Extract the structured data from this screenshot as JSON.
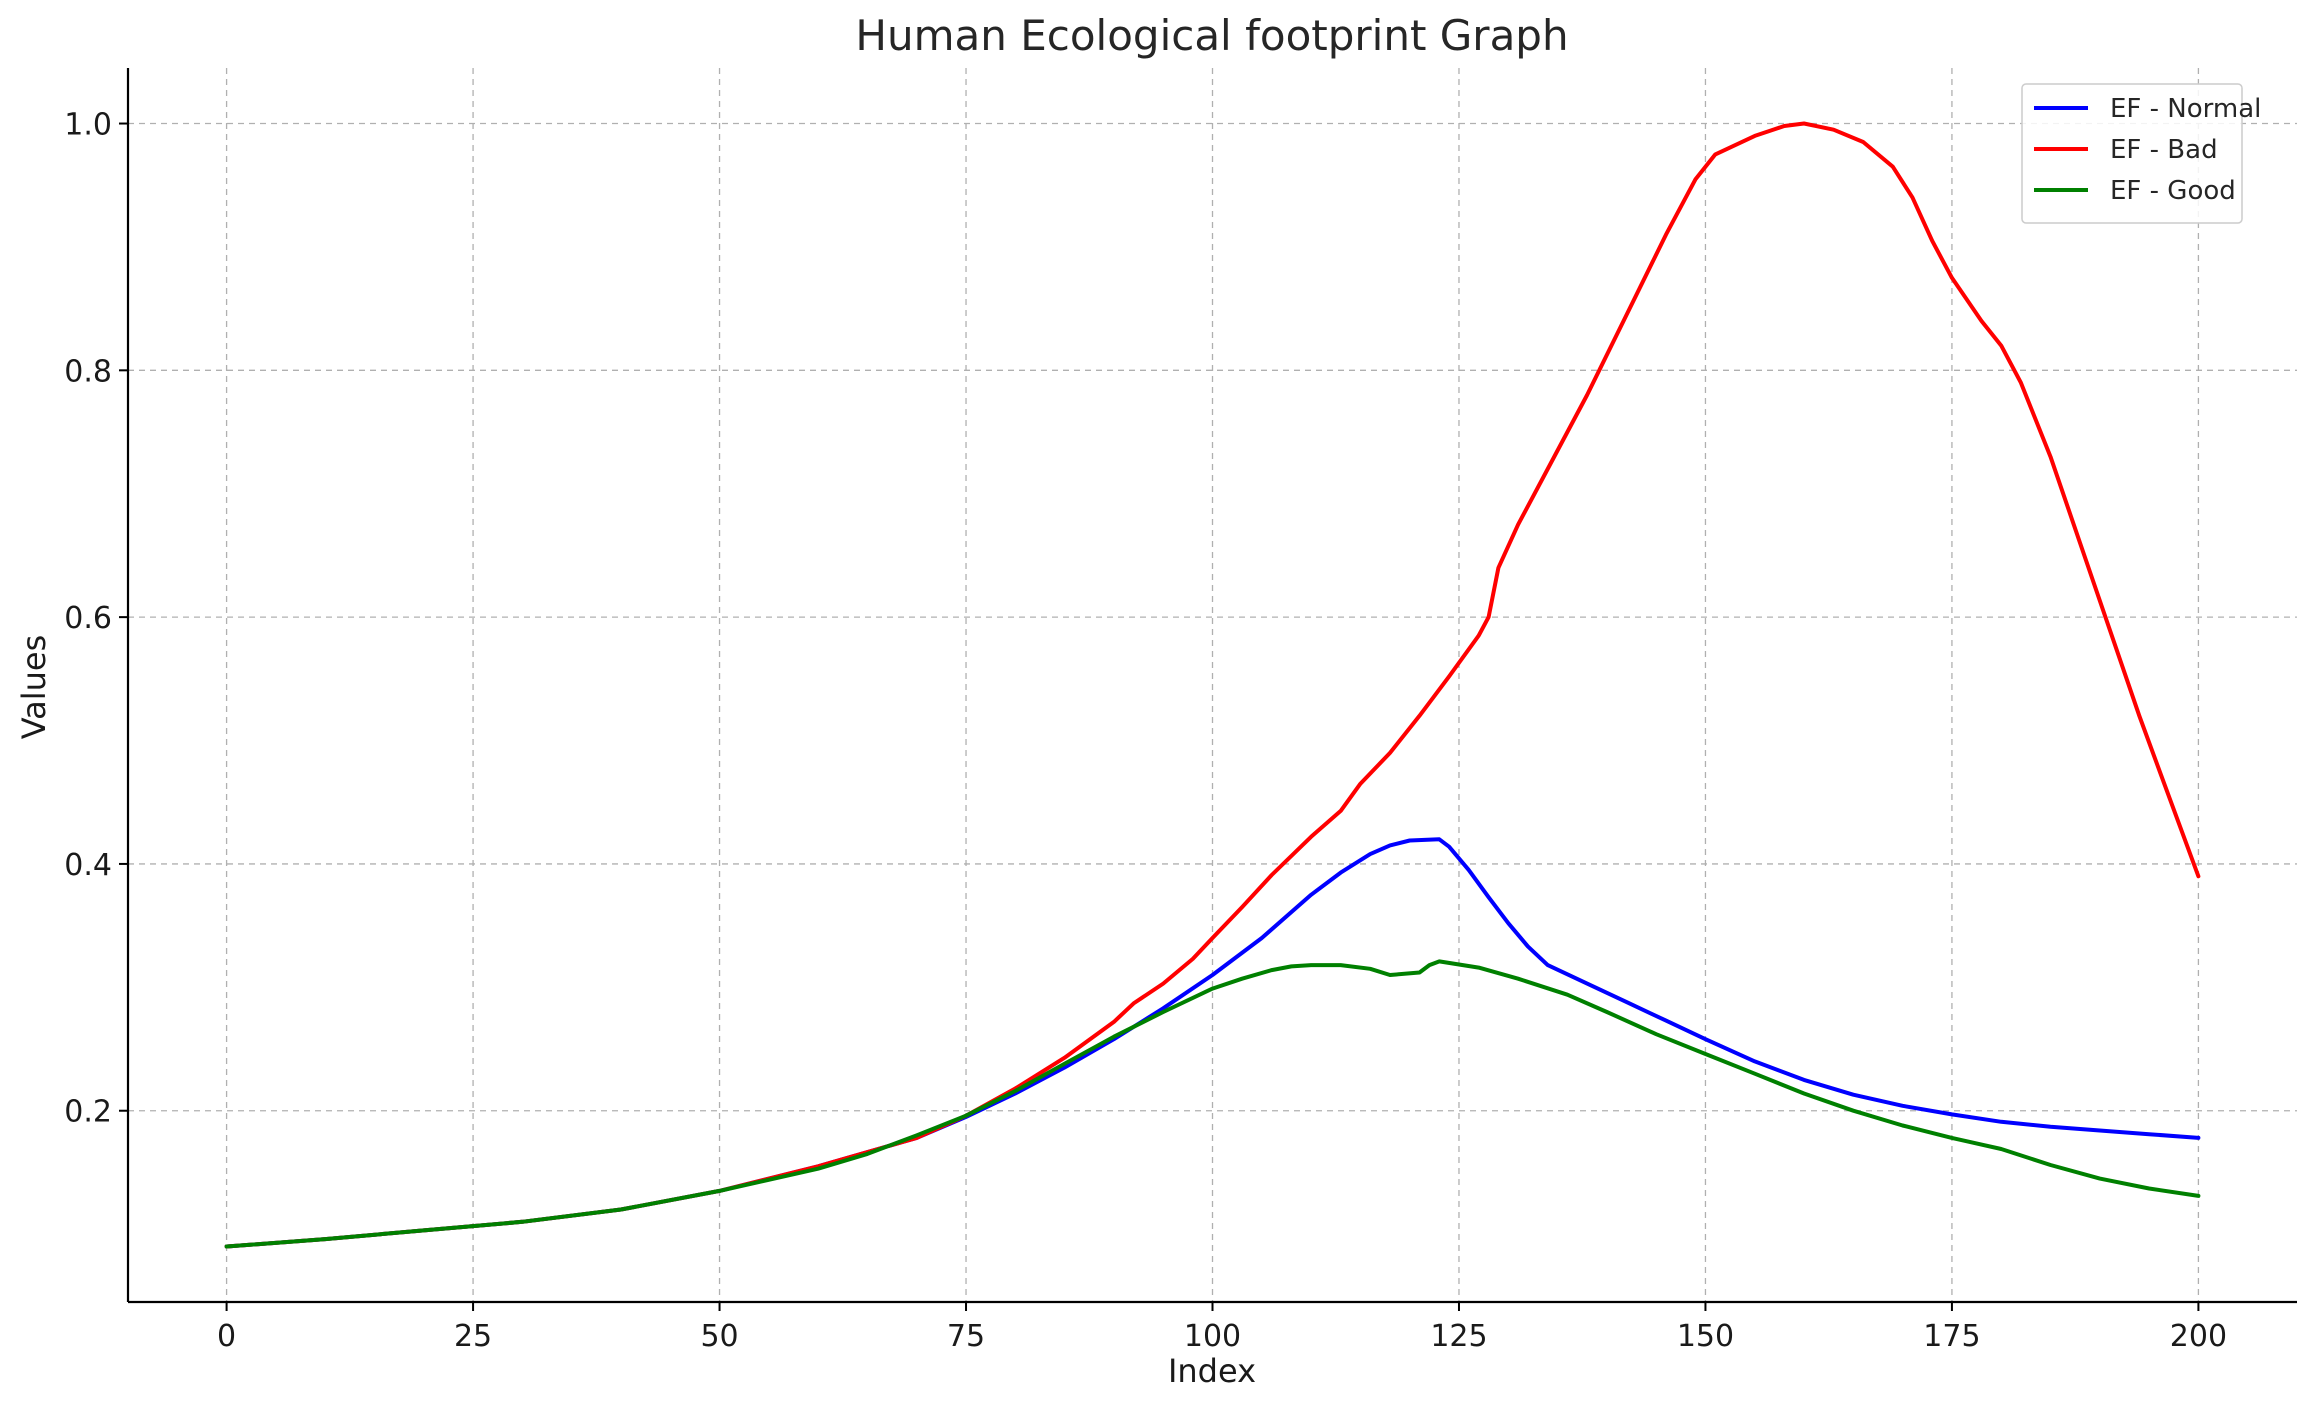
{
  "chart_data": {
    "type": "line",
    "title": "Human Ecological footprint Graph",
    "xlabel": "Index",
    "ylabel": "Values",
    "xlim": [
      -10,
      210
    ],
    "ylim": [
      0.045,
      1.045
    ],
    "xticks": [
      0,
      25,
      50,
      75,
      100,
      125,
      150,
      175,
      200
    ],
    "xtick_labels": [
      "0",
      "25",
      "50",
      "75",
      "100",
      "125",
      "150",
      "175",
      "200"
    ],
    "yticks": [
      0.2,
      0.4,
      0.6,
      0.8,
      1.0
    ],
    "ytick_labels": [
      "0.2",
      "0.4",
      "0.6",
      "0.8",
      "1.0"
    ],
    "grid": true,
    "legend": "top-right",
    "series": [
      {
        "name": "EF - Normal",
        "color": "#0000ff",
        "points": [
          [
            0,
            0.09
          ],
          [
            10,
            0.096
          ],
          [
            20,
            0.103
          ],
          [
            30,
            0.11
          ],
          [
            40,
            0.12
          ],
          [
            50,
            0.135
          ],
          [
            60,
            0.155
          ],
          [
            70,
            0.178
          ],
          [
            75,
            0.195
          ],
          [
            80,
            0.214
          ],
          [
            85,
            0.235
          ],
          [
            90,
            0.258
          ],
          [
            95,
            0.283
          ],
          [
            100,
            0.31
          ],
          [
            105,
            0.34
          ],
          [
            110,
            0.375
          ],
          [
            113,
            0.393
          ],
          [
            116,
            0.408
          ],
          [
            118,
            0.415
          ],
          [
            120,
            0.419
          ],
          [
            123,
            0.42
          ],
          [
            124,
            0.414
          ],
          [
            126,
            0.395
          ],
          [
            128,
            0.373
          ],
          [
            130,
            0.352
          ],
          [
            132,
            0.333
          ],
          [
            134,
            0.318
          ],
          [
            138,
            0.303
          ],
          [
            142,
            0.288
          ],
          [
            146,
            0.273
          ],
          [
            150,
            0.258
          ],
          [
            155,
            0.24
          ],
          [
            160,
            0.225
          ],
          [
            165,
            0.213
          ],
          [
            170,
            0.204
          ],
          [
            175,
            0.197
          ],
          [
            180,
            0.191
          ],
          [
            185,
            0.187
          ],
          [
            190,
            0.184
          ],
          [
            195,
            0.181
          ],
          [
            200,
            0.178
          ]
        ]
      },
      {
        "name": "EF - Bad",
        "color": "#ff0000",
        "points": [
          [
            0,
            0.09
          ],
          [
            10,
            0.096
          ],
          [
            20,
            0.103
          ],
          [
            30,
            0.11
          ],
          [
            40,
            0.12
          ],
          [
            50,
            0.135
          ],
          [
            60,
            0.155
          ],
          [
            70,
            0.178
          ],
          [
            75,
            0.196
          ],
          [
            80,
            0.218
          ],
          [
            85,
            0.243
          ],
          [
            90,
            0.272
          ],
          [
            92,
            0.287
          ],
          [
            95,
            0.303
          ],
          [
            98,
            0.323
          ],
          [
            100,
            0.34
          ],
          [
            103,
            0.365
          ],
          [
            106,
            0.391
          ],
          [
            110,
            0.422
          ],
          [
            113,
            0.443
          ],
          [
            115,
            0.465
          ],
          [
            118,
            0.49
          ],
          [
            121,
            0.52
          ],
          [
            124,
            0.552
          ],
          [
            127,
            0.585
          ],
          [
            128,
            0.6
          ],
          [
            129,
            0.64
          ],
          [
            131,
            0.675
          ],
          [
            134,
            0.72
          ],
          [
            138,
            0.78
          ],
          [
            142,
            0.845
          ],
          [
            146,
            0.91
          ],
          [
            149,
            0.955
          ],
          [
            151,
            0.975
          ],
          [
            155,
            0.99
          ],
          [
            158,
            0.998
          ],
          [
            160,
            1.0
          ],
          [
            163,
            0.995
          ],
          [
            166,
            0.985
          ],
          [
            169,
            0.965
          ],
          [
            171,
            0.94
          ],
          [
            173,
            0.905
          ],
          [
            175,
            0.875
          ],
          [
            178,
            0.84
          ],
          [
            180,
            0.82
          ],
          [
            182,
            0.79
          ],
          [
            185,
            0.73
          ],
          [
            188,
            0.66
          ],
          [
            191,
            0.59
          ],
          [
            194,
            0.52
          ],
          [
            197,
            0.455
          ],
          [
            200,
            0.39
          ]
        ]
      },
      {
        "name": "EF - Good",
        "color": "#008000",
        "points": [
          [
            0,
            0.09
          ],
          [
            10,
            0.096
          ],
          [
            20,
            0.103
          ],
          [
            30,
            0.11
          ],
          [
            40,
            0.12
          ],
          [
            50,
            0.135
          ],
          [
            55,
            0.144
          ],
          [
            60,
            0.153
          ],
          [
            65,
            0.165
          ],
          [
            70,
            0.18
          ],
          [
            75,
            0.196
          ],
          [
            80,
            0.216
          ],
          [
            85,
            0.238
          ],
          [
            90,
            0.26
          ],
          [
            95,
            0.28
          ],
          [
            100,
            0.299
          ],
          [
            103,
            0.307
          ],
          [
            106,
            0.314
          ],
          [
            108,
            0.317
          ],
          [
            110,
            0.318
          ],
          [
            113,
            0.318
          ],
          [
            116,
            0.315
          ],
          [
            118,
            0.31
          ],
          [
            121,
            0.312
          ],
          [
            122,
            0.318
          ],
          [
            123,
            0.321
          ],
          [
            127,
            0.316
          ],
          [
            131,
            0.307
          ],
          [
            136,
            0.294
          ],
          [
            140,
            0.28
          ],
          [
            145,
            0.262
          ],
          [
            150,
            0.246
          ],
          [
            155,
            0.23
          ],
          [
            160,
            0.214
          ],
          [
            165,
            0.2
          ],
          [
            170,
            0.188
          ],
          [
            175,
            0.178
          ],
          [
            180,
            0.169
          ],
          [
            185,
            0.156
          ],
          [
            190,
            0.145
          ],
          [
            195,
            0.137
          ],
          [
            200,
            0.131
          ]
        ]
      }
    ]
  }
}
